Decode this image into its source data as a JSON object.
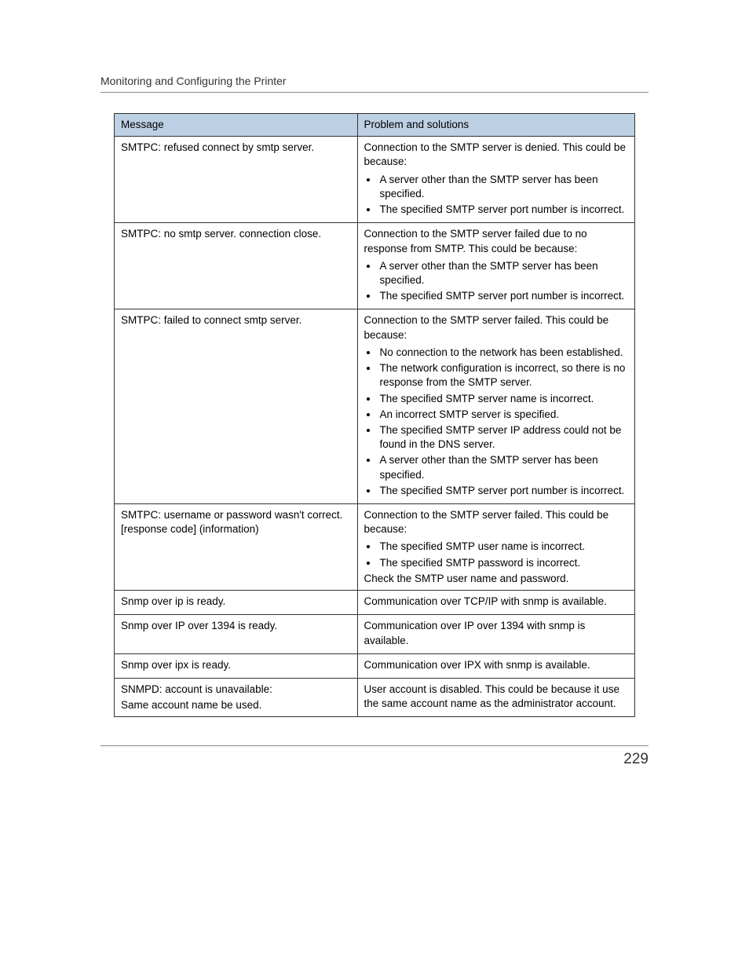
{
  "section_title": "Monitoring and Configuring the Printer",
  "page_number": "229",
  "table": {
    "header_bg": "#bdd0e4",
    "border_color": "#333333",
    "columns": [
      "Message",
      "Problem and solutions"
    ],
    "rows": [
      {
        "message": "SMTPC: refused connect by smtp server.",
        "intro": "Connection to the SMTP server is denied. This could be because:",
        "bullets": [
          "A server other than the SMTP server has been specified.",
          "The specified SMTP server port number is incorrect."
        ]
      },
      {
        "message": "SMTPC: no smtp server. connection close.",
        "intro": "Connection to the SMTP server failed due to no response from SMTP. This could be because:",
        "bullets": [
          "A server other than the SMTP server has been specified.",
          "The specified SMTP server port number is incorrect."
        ]
      },
      {
        "message": "SMTPC: failed to connect smtp server.",
        "intro": "Connection to the SMTP server failed. This could be because:",
        "bullets": [
          "No connection to the network has been established.",
          "The network configuration is incorrect, so there is no response from the SMTP server.",
          "The specified SMTP server name is incorrect.",
          "An incorrect SMTP server is specified.",
          "The specified SMTP server IP address could not be found in the DNS server.",
          "A server other than the SMTP server has been specified.",
          "The specified SMTP server port number is incorrect."
        ]
      },
      {
        "message": "SMTPC: username or password wasn't correct.[response code] (information)",
        "intro": "Connection to the SMTP server failed. This could be because:",
        "bullets": [
          "The specified SMTP user name is incorrect.",
          "The specified SMTP password is incorrect."
        ],
        "post": "Check the SMTP user name and password."
      },
      {
        "message": "Snmp over ip is ready.",
        "intro": "Communication over TCP/IP with snmp is available."
      },
      {
        "message": "Snmp over IP over 1394 is ready.",
        "intro": "Communication over IP over 1394 with snmp is available."
      },
      {
        "message": "Snmp over ipx is ready.",
        "intro": "Communication over IPX with snmp is available."
      },
      {
        "message": "SNMPD: account is unavailable:",
        "message_sub": "Same account name be used.",
        "intro": "User account is disabled. This could be because it use the same account name as the administrator account."
      }
    ]
  }
}
